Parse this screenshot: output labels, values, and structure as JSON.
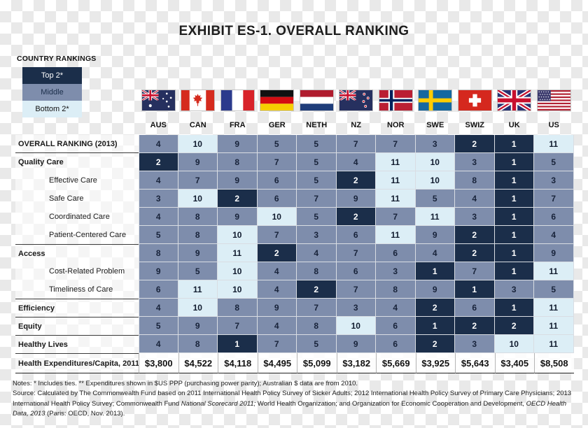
{
  "title": "EXHIBIT ES-1. OVERALL RANKING",
  "colors": {
    "top_rank": "#1b2e4a",
    "middle_rank": "#7e8dac",
    "bottom_rank": "#dceef6"
  },
  "legend": {
    "title": "COUNTRY RANKINGS",
    "items": [
      {
        "label": "Top 2*",
        "color": "#1b2e4a"
      },
      {
        "label": "Middle",
        "color": "#7e8dac"
      },
      {
        "label": "Bottom 2*",
        "color": "#dceef6"
      }
    ]
  },
  "countries": [
    "AUS",
    "CAN",
    "FRA",
    "GER",
    "NETH",
    "NZ",
    "NOR",
    "SWE",
    "SWIZ",
    "UK",
    "US"
  ],
  "chart_data": {
    "type": "table",
    "title": "EXHIBIT ES-1. OVERALL RANKING",
    "columns": [
      "AUS",
      "CAN",
      "FRA",
      "GER",
      "NETH",
      "NZ",
      "NOR",
      "SWE",
      "SWIZ",
      "UK",
      "US"
    ],
    "color_rule": {
      "top_max": 2,
      "bottom_min": 10,
      "legend": "Top 2* = dark, Middle = slate, Bottom 2* = light"
    },
    "rows": [
      {
        "label": "OVERALL RANKING (2013)",
        "category": true,
        "divider_below": true,
        "values": [
          4,
          10,
          9,
          5,
          5,
          7,
          7,
          3,
          2,
          1,
          11
        ]
      },
      {
        "label": "Quality Care",
        "category": true,
        "values": [
          2,
          9,
          8,
          7,
          5,
          4,
          11,
          10,
          3,
          1,
          5
        ]
      },
      {
        "label": "Effective Care",
        "category": false,
        "values": [
          4,
          7,
          9,
          6,
          5,
          2,
          11,
          10,
          8,
          1,
          3
        ]
      },
      {
        "label": "Safe Care",
        "category": false,
        "values": [
          3,
          10,
          2,
          6,
          7,
          9,
          11,
          5,
          4,
          1,
          7
        ]
      },
      {
        "label": "Coordinated Care",
        "category": false,
        "values": [
          4,
          8,
          9,
          10,
          5,
          2,
          7,
          11,
          3,
          1,
          6
        ]
      },
      {
        "label": "Patient-Centered Care",
        "category": false,
        "values": [
          5,
          8,
          10,
          7,
          3,
          6,
          11,
          9,
          2,
          1,
          4
        ]
      },
      {
        "label": "Access",
        "category": true,
        "divider_above": true,
        "values": [
          8,
          9,
          11,
          2,
          4,
          7,
          6,
          4,
          2,
          1,
          9
        ]
      },
      {
        "label": "Cost-Related Problem",
        "category": false,
        "values": [
          9,
          5,
          10,
          4,
          8,
          6,
          3,
          1,
          7,
          1,
          11
        ]
      },
      {
        "label": "Timeliness of Care",
        "category": false,
        "values": [
          6,
          11,
          10,
          4,
          2,
          7,
          8,
          9,
          1,
          3,
          5
        ]
      },
      {
        "label": "Efficiency",
        "category": true,
        "divider_above": true,
        "values": [
          4,
          10,
          8,
          9,
          7,
          3,
          4,
          2,
          6,
          1,
          11
        ]
      },
      {
        "label": "Equity",
        "category": true,
        "divider_above": true,
        "values": [
          5,
          9,
          7,
          4,
          8,
          10,
          6,
          1,
          2,
          2,
          11
        ]
      },
      {
        "label": "Healthy Lives",
        "category": true,
        "divider_above": true,
        "values": [
          4,
          8,
          1,
          7,
          5,
          9,
          6,
          2,
          3,
          10,
          11
        ]
      }
    ],
    "expenditures_row": {
      "label": "Health Expenditures/Capita, 2011**",
      "values": [
        "$3,800",
        "$4,522",
        "$4,118",
        "$4,495",
        "$5,099",
        "$3,182",
        "$5,669",
        "$3,925",
        "$5,643",
        "$3,405",
        "$8,508"
      ]
    }
  },
  "notes": {
    "line1": "Notes: * Includes ties. ** Expenditures shown in $US PPP (purchasing power parity); Australian $ data are from 2010.",
    "source_segments": [
      {
        "text": "Source: Calculated by The Commonwealth Fund based on 2011 International Health Policy Survey of Sicker Adults; 2012 International Health Policy Survey of Primary Care Physicians; 2013 International Health Policy Survey; Commonwealth Fund ",
        "italic": false
      },
      {
        "text": "National Scorecard 2011;",
        "italic": true
      },
      {
        "text": " World Health Organization; and Organization for Economic Cooperation and Development, ",
        "italic": false
      },
      {
        "text": "OECD Health Data, 2013",
        "italic": true
      },
      {
        "text": " (Paris: OECD, Nov. 2013).",
        "italic": false
      }
    ]
  }
}
